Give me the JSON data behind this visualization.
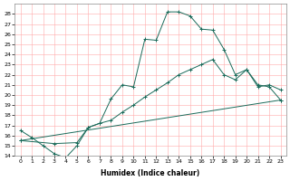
{
  "xlabel": "Humidex (Indice chaleur)",
  "xlim": [
    -0.5,
    23.5
  ],
  "ylim": [
    14,
    29
  ],
  "xticks": [
    0,
    1,
    2,
    3,
    4,
    5,
    6,
    7,
    8,
    9,
    10,
    11,
    12,
    13,
    14,
    15,
    16,
    17,
    18,
    19,
    20,
    21,
    22,
    23
  ],
  "yticks": [
    14,
    15,
    16,
    17,
    18,
    19,
    20,
    21,
    22,
    23,
    24,
    25,
    26,
    27,
    28
  ],
  "bg_color": "#ffffff",
  "grid_color": "#ffaaaa",
  "line_color": "#1a6b5a",
  "line1_x": [
    0,
    1,
    2,
    3,
    4,
    5,
    6,
    7,
    8,
    9,
    10,
    11,
    12,
    13,
    14,
    15,
    16,
    17,
    18,
    19,
    20,
    21,
    22,
    23
  ],
  "line1_y": [
    16.5,
    15.8,
    15.0,
    14.2,
    13.8,
    15.0,
    16.8,
    17.2,
    19.6,
    21.0,
    20.8,
    25.5,
    25.4,
    28.2,
    28.2,
    27.8,
    26.5,
    26.4,
    24.5,
    22.0,
    22.5,
    20.8,
    21.0,
    20.5
  ],
  "line2_x": [
    0,
    3,
    5,
    6,
    7,
    8,
    9,
    10,
    11,
    12,
    13,
    14,
    15,
    16,
    17,
    18,
    19,
    20,
    21,
    22,
    23
  ],
  "line2_y": [
    15.5,
    15.2,
    15.3,
    16.8,
    17.2,
    17.5,
    18.3,
    19.0,
    19.8,
    20.5,
    21.2,
    22.0,
    22.5,
    23.0,
    23.5,
    22.0,
    21.5,
    22.5,
    21.0,
    20.8,
    19.5
  ],
  "line3_x": [
    0,
    23
  ],
  "line3_y": [
    15.5,
    19.5
  ]
}
